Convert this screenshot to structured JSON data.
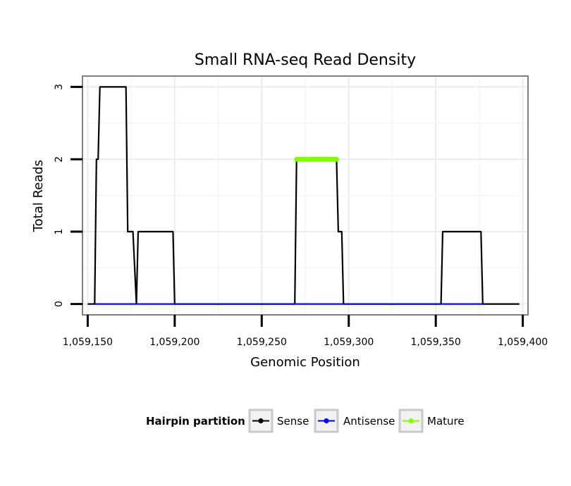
{
  "chart_data": {
    "type": "line",
    "title": "Small RNA-seq Read Density",
    "xlabel": "Genomic Position",
    "ylabel": "Total Reads",
    "xlim": [
      1059147,
      1059403
    ],
    "ylim": [
      -0.15,
      3.15
    ],
    "x_ticks": [
      1059150,
      1059200,
      1059250,
      1059300,
      1059350,
      1059400
    ],
    "x_tick_labels": [
      "1,059,150",
      "1,059,200",
      "1,059,250",
      "1,059,300",
      "1,059,350",
      "1,059,400"
    ],
    "y_ticks": [
      0,
      1,
      2,
      3
    ],
    "y_tick_labels": [
      "0",
      "1",
      "2",
      "3"
    ],
    "grid": true,
    "legend": {
      "title": "Hairpin partition",
      "position": "bottom",
      "entries": [
        "Sense",
        "Antisense",
        "Mature"
      ]
    },
    "series": [
      {
        "name": "Sense",
        "color": "#000000",
        "points": [
          [
            1059150,
            0
          ],
          [
            1059154,
            0
          ],
          [
            1059155,
            2
          ],
          [
            1059156,
            2
          ],
          [
            1059157,
            3
          ],
          [
            1059172,
            3
          ],
          [
            1059173,
            1
          ],
          [
            1059176,
            1
          ],
          [
            1059178,
            0
          ],
          [
            1059179,
            1
          ],
          [
            1059199,
            1
          ],
          [
            1059200,
            0
          ],
          [
            1059269,
            0
          ],
          [
            1059270,
            2
          ],
          [
            1059293,
            2
          ],
          [
            1059294,
            1
          ],
          [
            1059296,
            1
          ],
          [
            1059297,
            0
          ],
          [
            1059353,
            0
          ],
          [
            1059354,
            1
          ],
          [
            1059376,
            1
          ],
          [
            1059377,
            0
          ],
          [
            1059398,
            0
          ]
        ]
      },
      {
        "name": "Antisense",
        "color": "#0000ff",
        "points": [
          [
            1059154,
            0
          ],
          [
            1059178,
            0
          ],
          [
            1059179,
            0
          ],
          [
            1059200,
            0
          ],
          [
            1059270,
            0
          ],
          [
            1059297,
            0
          ],
          [
            1059354,
            0
          ],
          [
            1059377,
            0
          ]
        ]
      },
      {
        "name": "Mature",
        "color": "#7fff00",
        "points": [
          [
            1059270,
            2
          ],
          [
            1059293,
            2
          ]
        ]
      }
    ]
  }
}
